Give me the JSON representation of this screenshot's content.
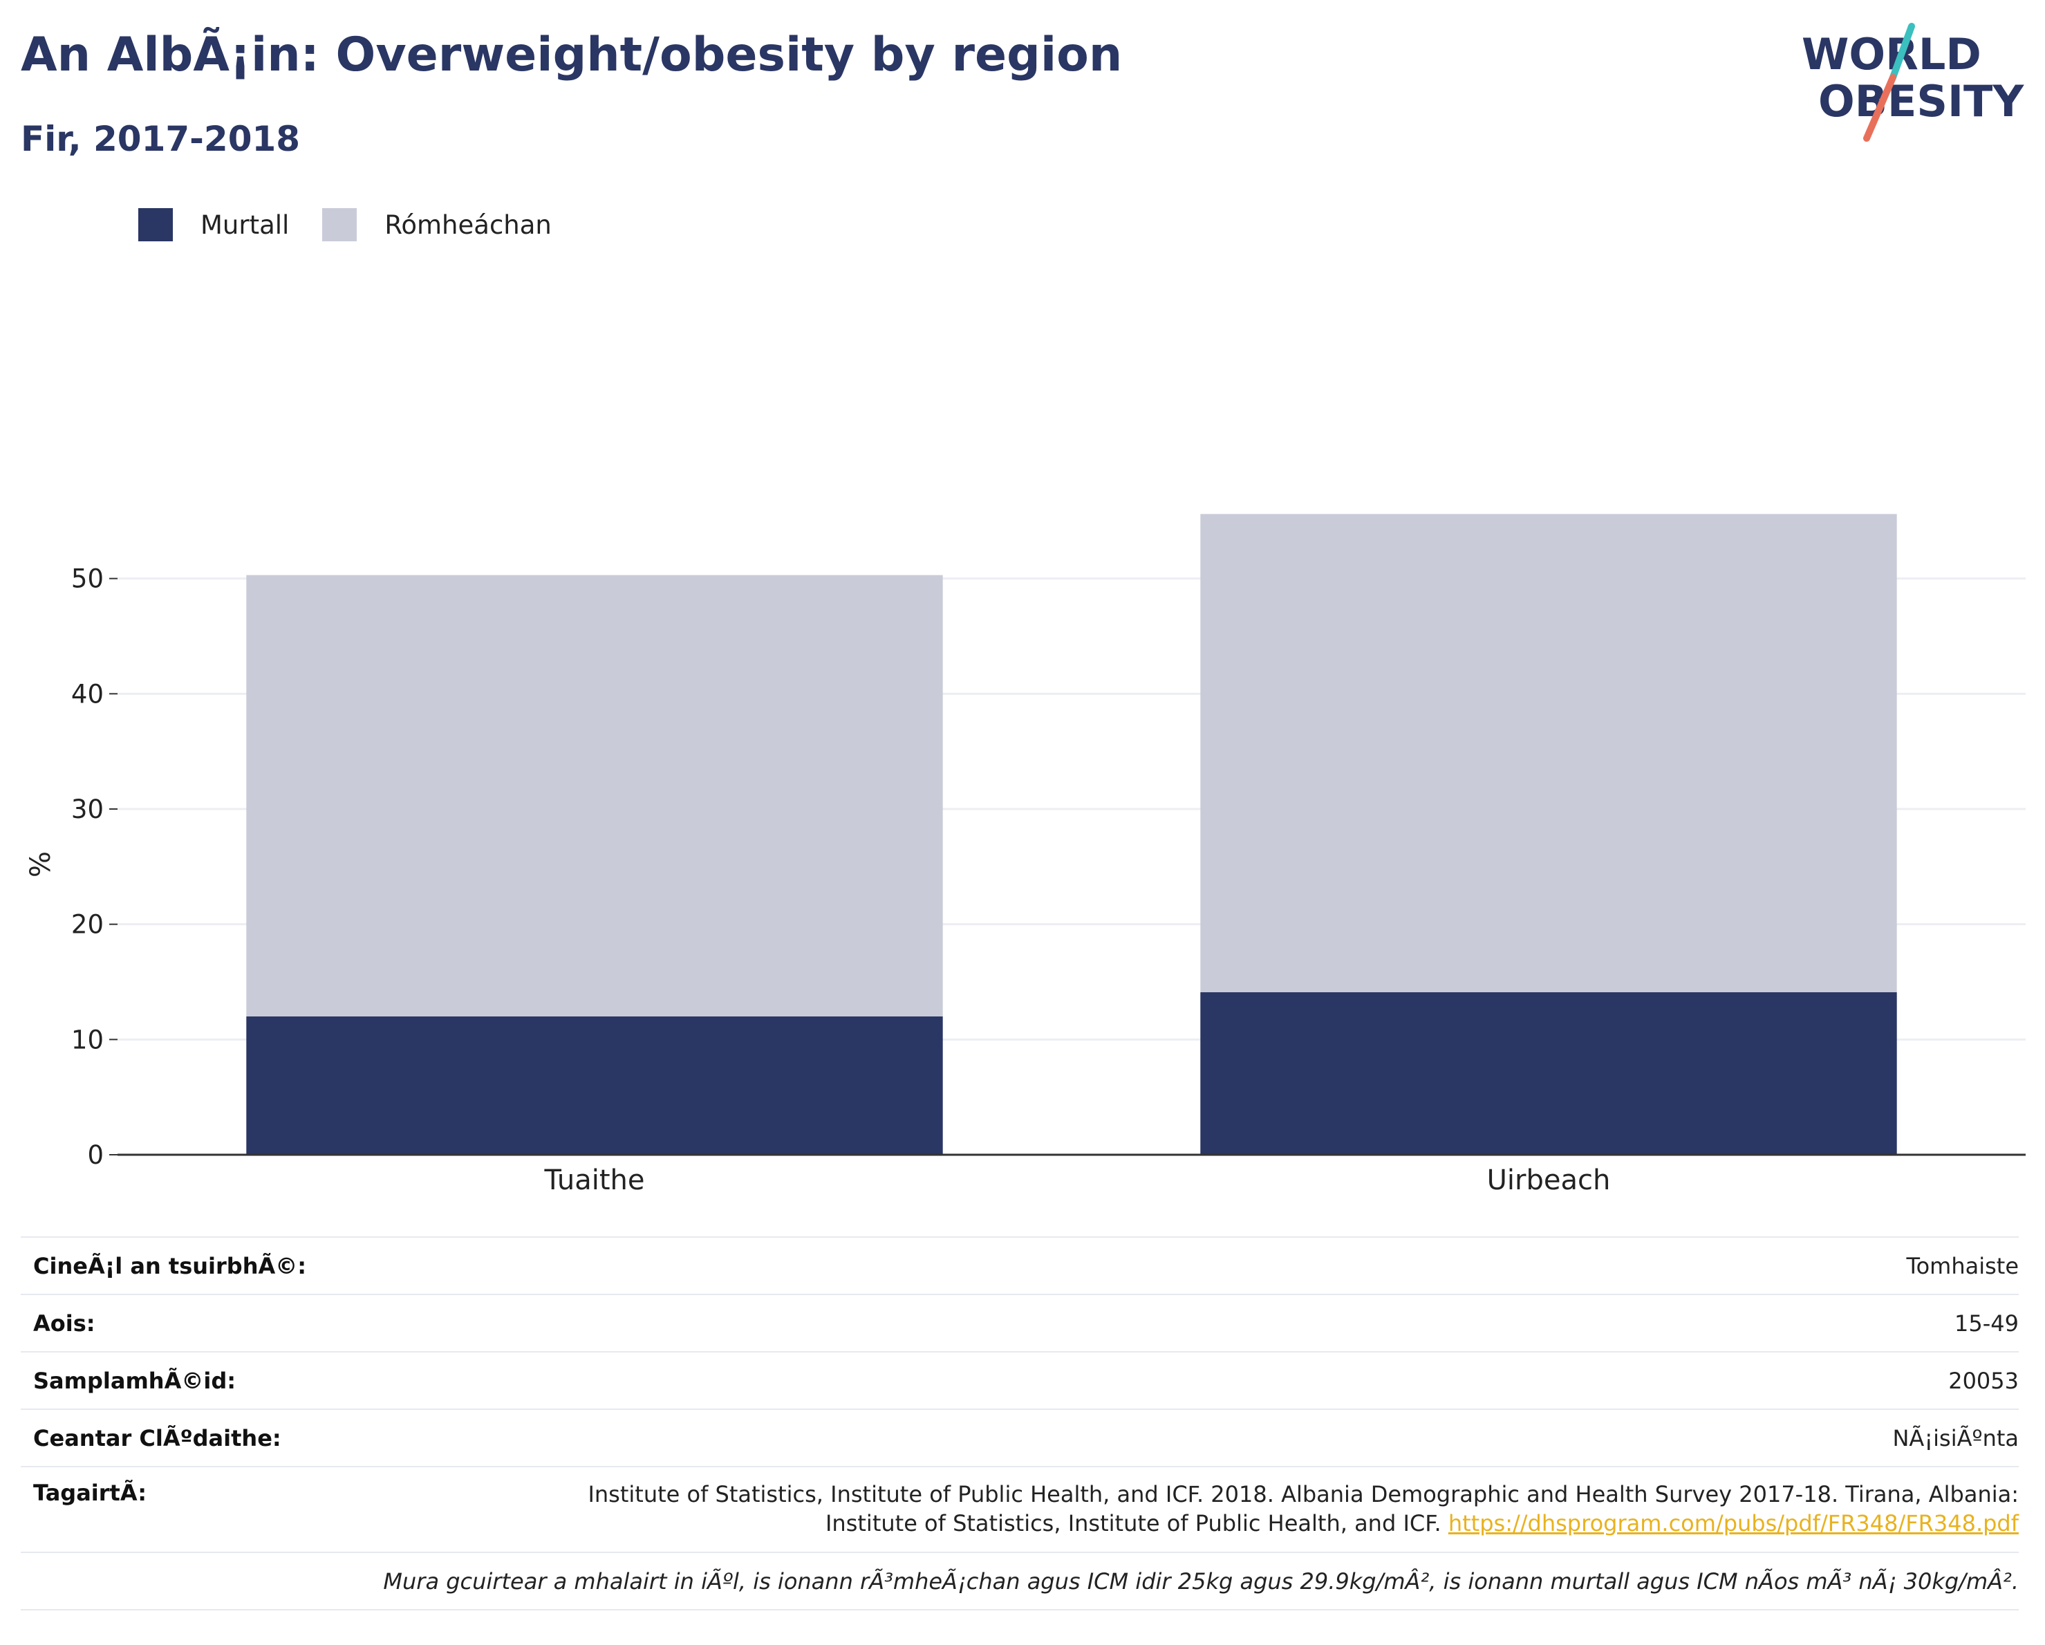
{
  "header": {
    "title": "An AlbÃ¡in: Overweight/obesity by region",
    "subtitle": "Fir, 2017-2018"
  },
  "logo": {
    "line1": "WORLD",
    "line2": "OBESITY",
    "colors": {
      "text": "#2a3663",
      "slash_top": "#3bbfbf",
      "slash_bottom": "#e8705a"
    }
  },
  "colors": {
    "obese": "#2a3663",
    "overweight": "#c9ccd8",
    "axis": "#333333",
    "grid": "#eceef3"
  },
  "chart_data": {
    "type": "bar",
    "stacked": true,
    "categories": [
      "Tuaithe",
      "Uirbeach"
    ],
    "series": [
      {
        "name": "Murtall",
        "values": [
          12.0,
          14.1
        ],
        "color": "#2a3663"
      },
      {
        "name": "Rómheáchan",
        "values": [
          38.3,
          41.5
        ],
        "color": "#c9ccd8"
      }
    ],
    "ylabel": "%",
    "xlabel": "",
    "yticks": [
      0,
      10,
      20,
      30,
      40,
      50
    ],
    "ylim": [
      0,
      60
    ],
    "grid": true,
    "legend_position": "top-left"
  },
  "meta": {
    "survey_type_label": "CineÃ¡l an tsuirbhÃ©:",
    "survey_type_value": "Tomhaiste",
    "age_label": "Aois:",
    "age_value": "15-49",
    "sample_label": "SamplamhÃ©id:",
    "sample_value": "20053",
    "area_label": "Ceantar ClÃºdaithe:",
    "area_value": "NÃ¡isiÃºnta",
    "reference_label": "TagairtÃ:",
    "reference_line1": "Institute of Statistics, Institute of Public Health, and ICF. 2018. Albania Demographic and Health Survey 2017-18. Tirana, Albania:",
    "reference_line2": "Institute of Statistics, Institute of Public Health, and ICF.",
    "reference_link": "https://dhsprogram.com/pubs/pdf/FR348/FR348.pdf",
    "note": "Mura gcuirtear a mhalairt in iÃºl, is ionann rÃ³mheÃ¡chan agus ICM idir 25kg agus 29.9kg/mÂ², is ionann murtall agus ICM nÃ­os mÃ³ nÃ¡ 30kg/mÂ²."
  }
}
